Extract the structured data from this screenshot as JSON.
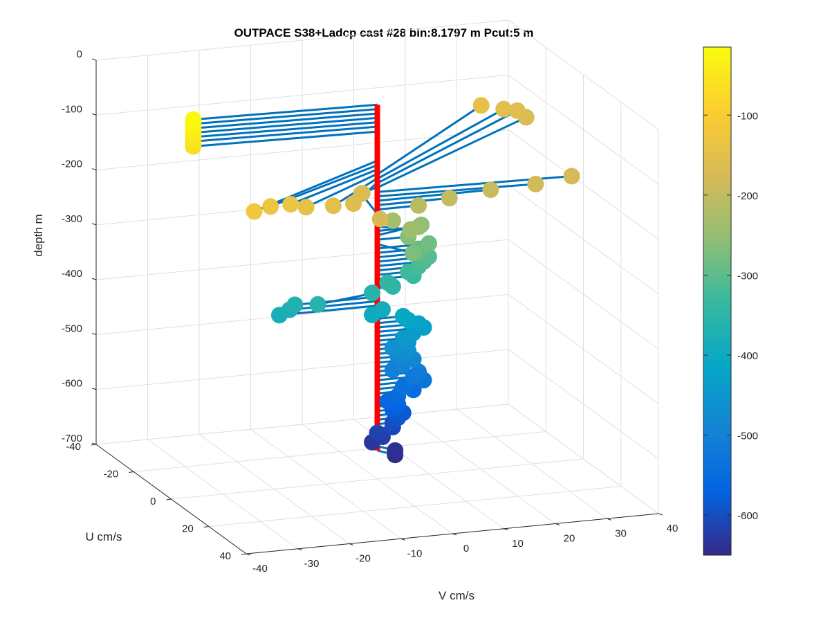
{
  "chart_data": {
    "type": "scatter",
    "subtype": "3d-stick-plot",
    "title": "OUTPACE S38+Ladcp cast #28 bin:8.1797 m  Pcut:5 m",
    "xlabel": "V cm/s",
    "ylabel": "U cm/s",
    "zlabel": "depth m",
    "xlim": [
      -40,
      40
    ],
    "ylim": [
      -40,
      40
    ],
    "zlim": [
      -700,
      0
    ],
    "xticks": [
      "-40",
      "-30",
      "-20",
      "-10",
      "0",
      "10",
      "20",
      "30",
      "40"
    ],
    "yticks": [
      "-40",
      "-20",
      "0",
      "20",
      "40"
    ],
    "zticks": [
      "0",
      "-100",
      "-200",
      "-300",
      "-400",
      "-500",
      "-600",
      "-700"
    ],
    "grid": true,
    "colorbar": {
      "ticks": [
        "-100",
        "-200",
        "-300",
        "-400",
        "-500",
        "-600"
      ],
      "range": [
        -650,
        -15
      ],
      "colormap": "parula"
    },
    "mast_color": "#ff0000",
    "stick_color": "#0072bd",
    "points": [
      {
        "depth": -18,
        "u": -2,
        "v": -35
      },
      {
        "depth": -26,
        "u": -2,
        "v": -35
      },
      {
        "depth": -34,
        "u": -2,
        "v": -35
      },
      {
        "depth": -42,
        "u": -2,
        "v": -35
      },
      {
        "depth": -50,
        "u": -2,
        "v": -35
      },
      {
        "depth": -58,
        "u": -2,
        "v": -35
      },
      {
        "depth": -67,
        "u": -2,
        "v": -35
      },
      {
        "depth": -120,
        "u": 25,
        "v": -33
      },
      {
        "depth": -128,
        "u": 20,
        "v": -28
      },
      {
        "depth": -136,
        "u": 17,
        "v": -23
      },
      {
        "depth": -144,
        "u": 17,
        "v": -20
      },
      {
        "depth": -152,
        "u": 15,
        "v": -14
      },
      {
        "depth": -160,
        "u": 12,
        "v": -9
      },
      {
        "depth": -168,
        "u": 3,
        "v": -4
      },
      {
        "depth": -176,
        "u": 18,
        "v": -6
      },
      {
        "depth": -145,
        "u": -38,
        "v": 34
      },
      {
        "depth": -153,
        "u": -37,
        "v": 38
      },
      {
        "depth": -161,
        "u": -38,
        "v": 41
      },
      {
        "depth": -169,
        "u": -36,
        "v": 42
      },
      {
        "depth": -177,
        "u": 2,
        "v": 37
      },
      {
        "depth": -185,
        "u": 2,
        "v": 30
      },
      {
        "depth": -193,
        "u": 0,
        "v": 22
      },
      {
        "depth": -201,
        "u": 0,
        "v": 14
      },
      {
        "depth": -209,
        "u": 0,
        "v": 8
      },
      {
        "depth": -217,
        "u": -14,
        "v": 2
      },
      {
        "depth": -232,
        "u": 0,
        "v": 3
      },
      {
        "depth": -240,
        "u": 4,
        "v": 5
      },
      {
        "depth": -248,
        "u": 0,
        "v": 8
      },
      {
        "depth": -256,
        "u": -4,
        "v": 10
      },
      {
        "depth": -264,
        "u": 0,
        "v": 6
      },
      {
        "depth": -272,
        "u": 8,
        "v": 4
      },
      {
        "depth": -280,
        "u": 0,
        "v": 10
      },
      {
        "depth": -288,
        "u": 0,
        "v": 8
      },
      {
        "depth": -296,
        "u": 0,
        "v": 8
      },
      {
        "depth": -304,
        "u": 0,
        "v": 10
      },
      {
        "depth": -312,
        "u": 0,
        "v": 9
      },
      {
        "depth": -320,
        "u": 0,
        "v": 8
      },
      {
        "depth": -328,
        "u": 0,
        "v": 6
      },
      {
        "depth": -336,
        "u": 0,
        "v": 7
      },
      {
        "depth": -344,
        "u": 0,
        "v": 2
      },
      {
        "depth": -352,
        "u": 0,
        "v": 3
      },
      {
        "depth": -360,
        "u": 0,
        "v": -1
      },
      {
        "depth": -360,
        "u": 4,
        "v": -13
      },
      {
        "depth": -368,
        "u": 0,
        "v": -16
      },
      {
        "depth": -376,
        "u": 0,
        "v": -17
      },
      {
        "depth": -384,
        "u": 0,
        "v": -19
      },
      {
        "depth": -392,
        "u": 0,
        "v": 1
      },
      {
        "depth": -400,
        "u": 0,
        "v": -1
      },
      {
        "depth": -408,
        "u": 0,
        "v": 5
      },
      {
        "depth": -416,
        "u": 0,
        "v": 6
      },
      {
        "depth": -424,
        "u": 0,
        "v": 8
      },
      {
        "depth": -432,
        "u": 0,
        "v": 9
      },
      {
        "depth": -440,
        "u": 0,
        "v": 7
      },
      {
        "depth": -448,
        "u": 0,
        "v": 5
      },
      {
        "depth": -456,
        "u": 0,
        "v": 6
      },
      {
        "depth": -464,
        "u": 0,
        "v": 3
      },
      {
        "depth": -472,
        "u": 0,
        "v": 6
      },
      {
        "depth": -480,
        "u": 0,
        "v": 4
      },
      {
        "depth": -488,
        "u": 0,
        "v": 7
      },
      {
        "depth": -496,
        "u": 0,
        "v": 5
      },
      {
        "depth": -504,
        "u": 0,
        "v": 3
      },
      {
        "depth": -512,
        "u": 0,
        "v": 8
      },
      {
        "depth": -520,
        "u": 0,
        "v": 7
      },
      {
        "depth": -528,
        "u": 0,
        "v": 9
      },
      {
        "depth": -536,
        "u": 0,
        "v": 5
      },
      {
        "depth": -544,
        "u": 0,
        "v": 7
      },
      {
        "depth": -552,
        "u": 0,
        "v": 4
      },
      {
        "depth": -560,
        "u": 0,
        "v": 2
      },
      {
        "depth": -568,
        "u": 0,
        "v": 4
      },
      {
        "depth": -576,
        "u": 0,
        "v": 3
      },
      {
        "depth": -584,
        "u": 0,
        "v": 5
      },
      {
        "depth": -592,
        "u": 0,
        "v": 4
      },
      {
        "depth": -600,
        "u": 0,
        "v": 3
      },
      {
        "depth": -608,
        "u": 0,
        "v": 3
      },
      {
        "depth": -616,
        "u": 0,
        "v": 0
      },
      {
        "depth": -624,
        "u": 0,
        "v": 1
      },
      {
        "depth": -632,
        "u": 0,
        "v": -1
      },
      {
        "depth": -640,
        "u": 4,
        "v": 2
      },
      {
        "depth": -648,
        "u": 4,
        "v": 2
      }
    ]
  }
}
